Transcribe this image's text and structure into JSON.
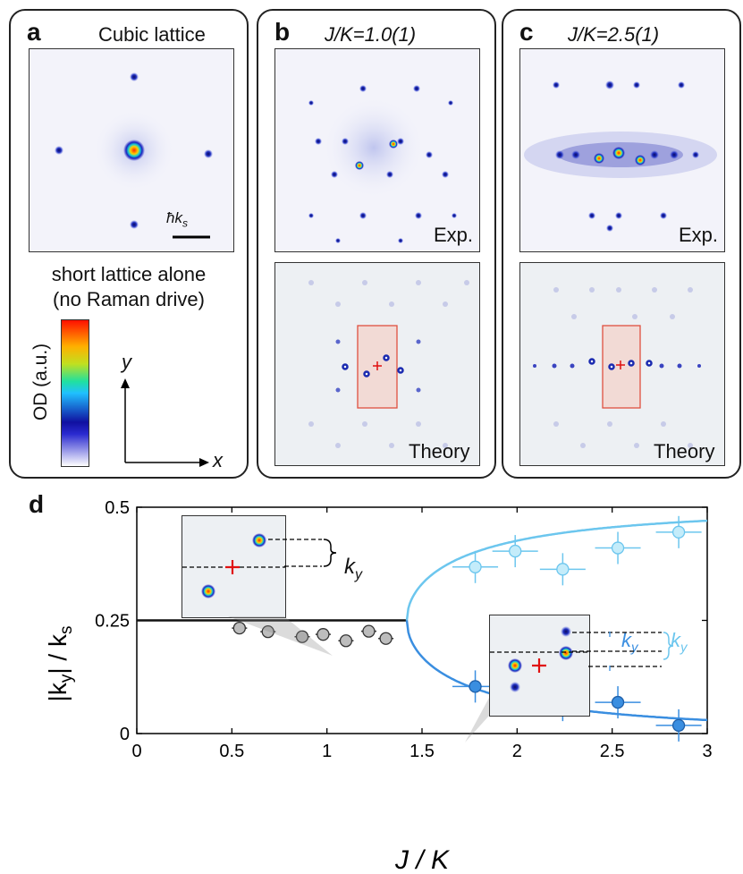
{
  "panel_a": {
    "label": "a",
    "title": "Cubic lattice",
    "scalebar_label": "ħk",
    "scalebar_sub": "s",
    "caption_line1": "short lattice alone",
    "caption_line2": "(no Raman drive)",
    "colorbar_label": "OD (a.u.)",
    "axis_y": "y",
    "axis_x": "x"
  },
  "panel_b": {
    "label": "b",
    "title": "J/K=1.0(1)",
    "exp_tag": "Exp.",
    "theory_tag": "Theory"
  },
  "panel_c": {
    "label": "c",
    "title": "J/K=2.5(1)",
    "exp_tag": "Exp.",
    "theory_tag": "Theory"
  },
  "panel_d": {
    "label": "d",
    "ky_label": "k",
    "ky_sub": "y"
  },
  "colors": {
    "lower_branch": "#3a8ee0",
    "upper_branch": "#6cc6ee",
    "gray_points": "#bdbdbd",
    "flat_line": "#111111",
    "cross": "#e01010"
  },
  "chart_data": {
    "type": "scatter",
    "xlabel": "J / K",
    "ylabel": "|k_y| / k_s",
    "xlim": [
      0,
      3
    ],
    "ylim": [
      0,
      0.5
    ],
    "x_ticks": [
      "0",
      "0.5",
      "1",
      "1.5",
      "2",
      "2.5",
      "3"
    ],
    "y_ticks": [
      "0",
      "0.25",
      "0.5"
    ],
    "series": [
      {
        "points": [
          [
            0.54,
            0.233
          ],
          [
            0.69,
            0.225
          ],
          [
            0.87,
            0.214
          ],
          [
            0.98,
            0.219
          ],
          [
            1.1,
            0.205
          ],
          [
            1.22,
            0.226
          ],
          [
            1.31,
            0.21
          ]
        ],
        "xerr": 0.04
      },
      {
        "points": [
          [
            1.78,
            0.368
          ],
          [
            1.99,
            0.403
          ],
          [
            2.24,
            0.363
          ],
          [
            2.53,
            0.41
          ],
          [
            2.85,
            0.445
          ]
        ],
        "xerr": 0.12
      },
      {
        "points": [
          [
            1.78,
            0.104
          ],
          [
            1.99,
            0.081
          ],
          [
            2.24,
            0.063
          ],
          [
            2.53,
            0.069
          ],
          [
            2.85,
            0.018
          ]
        ],
        "xerr": 0.12
      }
    ],
    "curves": {
      "flat_value": 0.25,
      "critical_x": 1.42
    }
  }
}
